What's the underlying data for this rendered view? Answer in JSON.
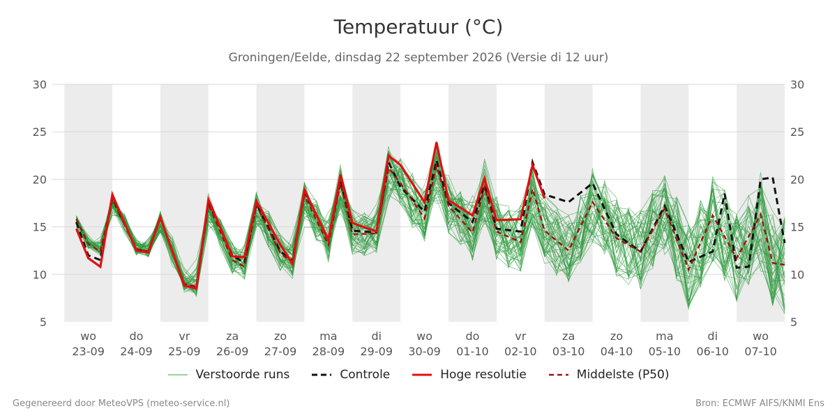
{
  "title": "Temperatuur (°C)",
  "subtitle": "Groningen/Eelde, dinsdag 22 september 2026 (Versie di 12 uur)",
  "footer_left": "Gegenereerd door MeteoVPS (meteo-service.nl)",
  "footer_right": "Bron: ECMWF AIFS/KNMI Ens",
  "legend": [
    {
      "label": "Verstoorde runs",
      "color": "#5cb85c",
      "style": "thin-solid"
    },
    {
      "label": "Controle",
      "color": "#111111",
      "style": "dashed"
    },
    {
      "label": "Hoge resolutie",
      "color": "#e01010",
      "style": "solid"
    },
    {
      "label": "Middelste (P50)",
      "color": "#a01010",
      "style": "dashed"
    }
  ],
  "chart_data": {
    "type": "line",
    "ylim": [
      5,
      30
    ],
    "yticks": [
      5,
      10,
      15,
      20,
      25,
      30
    ],
    "x_unit_note": "x in dagen vanaf 23-09 00 uur",
    "xlim": [
      -0.75,
      14.5
    ],
    "grid": true,
    "xticks": [
      {
        "day": "wo",
        "date": "23-09"
      },
      {
        "day": "do",
        "date": "24-09"
      },
      {
        "day": "vr",
        "date": "25-09"
      },
      {
        "day": "za",
        "date": "26-09"
      },
      {
        "day": "zo",
        "date": "27-09"
      },
      {
        "day": "ma",
        "date": "28-09"
      },
      {
        "day": "di",
        "date": "29-09"
      },
      {
        "day": "wo",
        "date": "30-09"
      },
      {
        "day": "do",
        "date": "01-10"
      },
      {
        "day": "vr",
        "date": "02-10"
      },
      {
        "day": "za",
        "date": "03-10"
      },
      {
        "day": "zo",
        "date": "04-10"
      },
      {
        "day": "ma",
        "date": "05-10"
      },
      {
        "day": "di",
        "date": "06-10"
      },
      {
        "day": "wo",
        "date": "07-10"
      }
    ],
    "shaded_days": [
      0,
      2,
      4,
      6,
      8,
      10,
      12,
      14
    ],
    "hires": {
      "name": "Hoge resolutie",
      "x": [
        -0.25,
        0,
        0.25,
        0.5,
        1,
        1.25,
        1.5,
        2,
        2.25,
        2.5,
        3,
        3.25,
        3.5,
        4,
        4.25,
        4.5,
        5,
        5.25,
        5.5,
        6,
        6.25,
        6.5,
        7,
        7.25,
        7.5,
        8,
        8.25,
        8.5,
        9,
        9.25,
        9.5
      ],
      "values": [
        14.8,
        11.7,
        10.8,
        18.4,
        12.5,
        12.3,
        16.0,
        8.8,
        8.5,
        17.9,
        11.9,
        11.8,
        17.7,
        13.1,
        11.1,
        18.9,
        13.6,
        20.5,
        15.4,
        14.5,
        22.5,
        21.5,
        17.6,
        23.9,
        17.8,
        16.2,
        20.1,
        15.7,
        15.8,
        21.5,
        18.0
      ]
    },
    "control": {
      "name": "Controle",
      "x": [
        -0.25,
        0,
        0.25,
        0.5,
        1,
        1.25,
        1.5,
        2,
        2.25,
        2.5,
        3,
        3.25,
        3.5,
        4,
        4.25,
        4.5,
        5,
        5.25,
        5.5,
        6,
        6.25,
        6.5,
        7,
        7.25,
        7.5,
        8,
        8.25,
        8.5,
        9,
        9.25,
        9.5,
        10,
        10.5,
        11,
        11.5,
        12,
        12.5,
        13,
        13.25,
        13.5,
        13.75,
        14,
        14.25,
        14.5
      ],
      "values": [
        15.5,
        12.0,
        11.5,
        18.0,
        12.6,
        12.4,
        16.0,
        8.8,
        8.6,
        17.6,
        12.0,
        11.2,
        17.4,
        12.4,
        11.4,
        18.7,
        13.7,
        19.9,
        14.6,
        14.4,
        21.8,
        19.2,
        16.6,
        22.0,
        17.5,
        15.5,
        19.4,
        14.8,
        14.5,
        21.8,
        18.4,
        17.6,
        19.6,
        14.2,
        12.4,
        17.2,
        11.3,
        12.4,
        18.5,
        10.7,
        10.8,
        20.0,
        20.2,
        13.3
      ]
    },
    "median": {
      "name": "Middelste (P50)",
      "x": [
        -0.25,
        0,
        0.25,
        0.5,
        1,
        1.25,
        1.5,
        2,
        2.25,
        2.5,
        3,
        3.25,
        3.5,
        4,
        4.25,
        4.5,
        5,
        5.25,
        5.5,
        6,
        6.25,
        6.5,
        7,
        7.25,
        7.5,
        8,
        8.25,
        8.5,
        9,
        9.25,
        9.5,
        10,
        10.5,
        11,
        11.5,
        12,
        12.5,
        13,
        13.5,
        14,
        14.25,
        14.5
      ],
      "values": [
        15.8,
        13.2,
        12.4,
        18.0,
        12.7,
        12.4,
        15.9,
        9.0,
        8.7,
        17.4,
        11.5,
        10.8,
        17.3,
        12.2,
        11.3,
        18.3,
        13.1,
        19.6,
        14.2,
        14.3,
        21.2,
        19.6,
        15.9,
        21.4,
        17.2,
        14.4,
        19.2,
        14.5,
        13.4,
        19.0,
        14.6,
        12.5,
        17.6,
        13.8,
        12.4,
        16.9,
        10.5,
        16.2,
        11.7,
        16.3,
        11.2,
        11.0
      ]
    },
    "ensemble_members": 50
  }
}
